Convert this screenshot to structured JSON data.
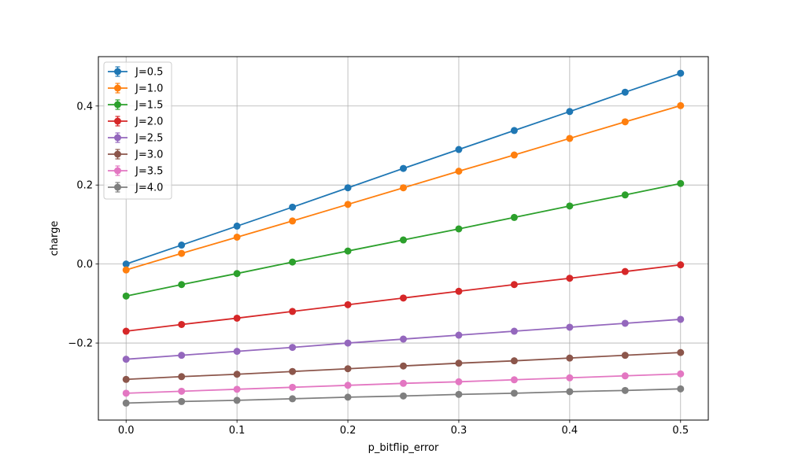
{
  "chart_data": {
    "type": "line",
    "title": "",
    "xlabel": "p_bitflip_error",
    "ylabel": "charge",
    "x": [
      0.0,
      0.05,
      0.1,
      0.15,
      0.2,
      0.25,
      0.3,
      0.35,
      0.4,
      0.45,
      0.5
    ],
    "xlim": [
      -0.025,
      0.525
    ],
    "ylim": [
      -0.395,
      0.525
    ],
    "xticks": [
      0.0,
      0.1,
      0.2,
      0.3,
      0.4,
      0.5
    ],
    "xtick_labels": [
      "0.0",
      "0.1",
      "0.2",
      "0.3",
      "0.4",
      "0.5"
    ],
    "yticks": [
      -0.2,
      0.0,
      0.2,
      0.4
    ],
    "ytick_labels": [
      "−0.2",
      "0.0",
      "0.2",
      "0.4"
    ],
    "grid": true,
    "legend_position": "top-left",
    "series": [
      {
        "name": "J=0.5",
        "color": "#1f77b4",
        "values": [
          0.0,
          0.048,
          0.096,
          0.144,
          0.193,
          0.242,
          0.29,
          0.338,
          0.386,
          0.435,
          0.483
        ]
      },
      {
        "name": "J=1.0",
        "color": "#ff7f0e",
        "values": [
          -0.015,
          0.027,
          0.068,
          0.109,
          0.151,
          0.193,
          0.235,
          0.276,
          0.318,
          0.36,
          0.401
        ]
      },
      {
        "name": "J=1.5",
        "color": "#2ca02c",
        "values": [
          -0.081,
          -0.052,
          -0.024,
          0.005,
          0.033,
          0.061,
          0.089,
          0.118,
          0.147,
          0.175,
          0.204
        ]
      },
      {
        "name": "J=2.0",
        "color": "#d62728",
        "values": [
          -0.17,
          -0.153,
          -0.137,
          -0.12,
          -0.103,
          -0.086,
          -0.069,
          -0.052,
          -0.036,
          -0.019,
          -0.002
        ]
      },
      {
        "name": "J=2.5",
        "color": "#9467bd",
        "values": [
          -0.241,
          -0.231,
          -0.221,
          -0.211,
          -0.2,
          -0.19,
          -0.18,
          -0.17,
          -0.16,
          -0.15,
          -0.14
        ]
      },
      {
        "name": "J=3.0",
        "color": "#8c564b",
        "values": [
          -0.292,
          -0.285,
          -0.279,
          -0.272,
          -0.265,
          -0.258,
          -0.251,
          -0.245,
          -0.238,
          -0.231,
          -0.224
        ]
      },
      {
        "name": "J=3.5",
        "color": "#e377c2",
        "values": [
          -0.327,
          -0.322,
          -0.317,
          -0.312,
          -0.307,
          -0.302,
          -0.298,
          -0.293,
          -0.288,
          -0.283,
          -0.278
        ]
      },
      {
        "name": "J=4.0",
        "color": "#7f7f7f",
        "values": [
          -0.352,
          -0.348,
          -0.345,
          -0.341,
          -0.337,
          -0.334,
          -0.33,
          -0.327,
          -0.323,
          -0.32,
          -0.316
        ]
      }
    ]
  }
}
